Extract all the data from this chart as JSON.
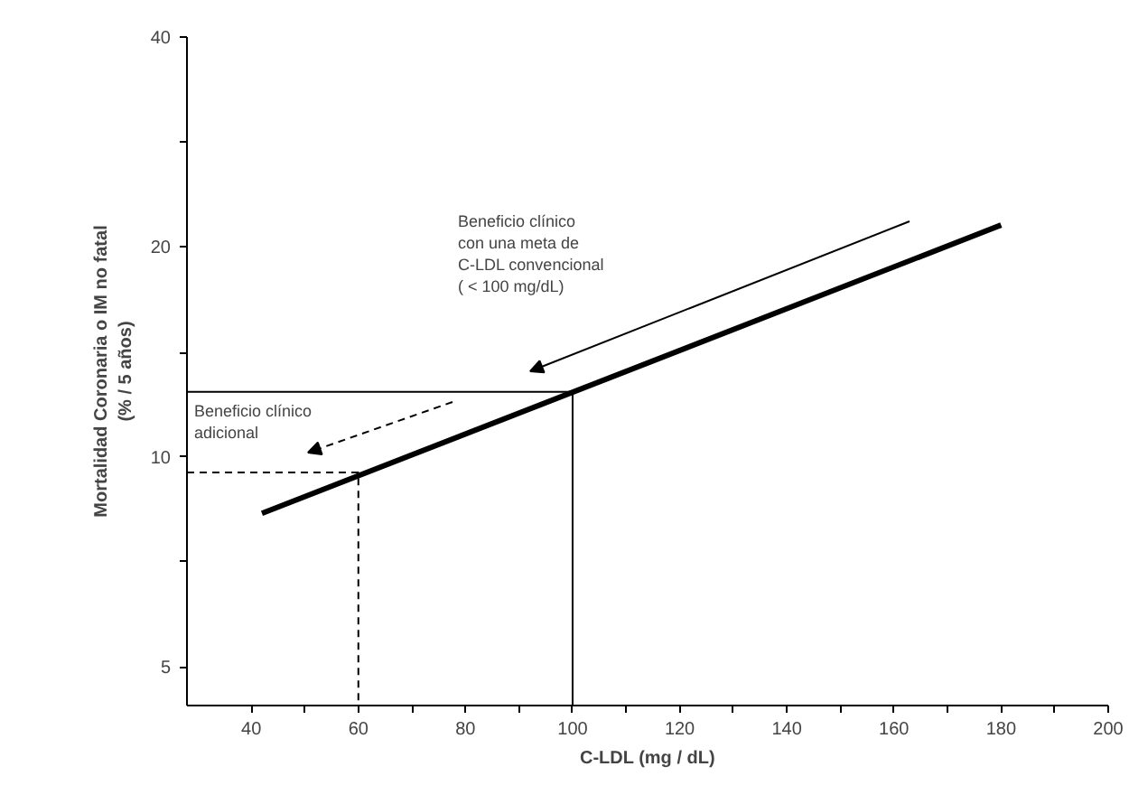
{
  "chart_data": {
    "type": "line",
    "xlabel": "C-LDL (mg / dL)",
    "ylabel": "Mortalidad Coronaria o IM no fatal\n(% / 5 años)",
    "log": "y",
    "grid": false,
    "marker": "none",
    "xlim": [
      28,
      200
    ],
    "ylim": [
      4.4,
      40
    ],
    "xticks": [
      40,
      {
        "value": 50,
        "label": null
      },
      60,
      {
        "value": 70,
        "label": null
      },
      80,
      {
        "value": 90,
        "label": null
      },
      100,
      {
        "value": 110,
        "label": null
      },
      120,
      {
        "value": 130,
        "label": null
      },
      140,
      {
        "value": 150,
        "label": null
      },
      160,
      {
        "value": 170,
        "label": null
      },
      180,
      {
        "value": 190,
        "label": null
      },
      200
    ],
    "yticks": [
      5,
      {
        "value": 7.1,
        "label": null
      },
      10,
      {
        "value": 14.1,
        "label": null
      },
      20,
      {
        "value": 28.3,
        "label": null
      },
      40
    ],
    "series": [
      {
        "color": "#000000",
        "x": [
          42,
          180
        ],
        "values": [
          8.3,
          21.5
        ],
        "line_style": "solid"
      },
      {
        "color": "#000000",
        "x": [
          28,
          100,
          100
        ],
        "values": [
          12.4,
          12.4,
          4.4
        ],
        "line_style": "solid"
      },
      {
        "color": "#000000",
        "x": [
          28,
          60,
          60
        ],
        "values": [
          9.5,
          9.5,
          4.4
        ],
        "line_style": "dashed"
      }
    ],
    "annotations": [
      "Beneficio clínico\ncon una meta de\nC-LDL convencional\n( < 100 mg/dL)",
      "Beneficio clínico\nadicional"
    ]
  }
}
